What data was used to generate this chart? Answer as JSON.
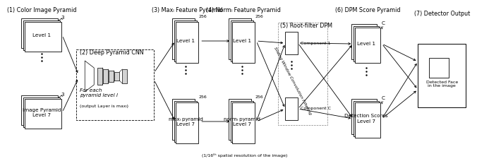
{
  "bg_color": "#ffffff",
  "labels": {
    "section1": "(1) Color Image Pyramid",
    "section2": "(2) Deep Pyramid CNN",
    "section3": "(3) Maxₗ Feature Pyramid",
    "section4": "(4) Normₗ Feature Pyramid",
    "section5": "(5) Root-filter DPM",
    "section6": "(6) DPM Score Pyramid",
    "section7": "(7) Detector Output",
    "level1": "Level 1",
    "img_pyr_l7": "Image Pyramid\nLevel 7",
    "max_pyr_l7": "maxₗ pyramid\nLevel 7",
    "norm_pyr_l7": "normₗ pyramid\nLevel 7",
    "det_scores_l7": "Detection Scores\nLevel 7",
    "for_each": "For each\npyramid level l",
    "output_layer": "(output Layer is maxₗ)",
    "comp1": "Component 1",
    "compC": "Component C",
    "detected": "Detected Face\nin the image",
    "spatial_res": "(1/16ᵗʰ spatial resolution of the image)",
    "sliding": "Sliding Window Convolution Filtering",
    "n256": "256",
    "nC": "C",
    "n3": "3"
  }
}
